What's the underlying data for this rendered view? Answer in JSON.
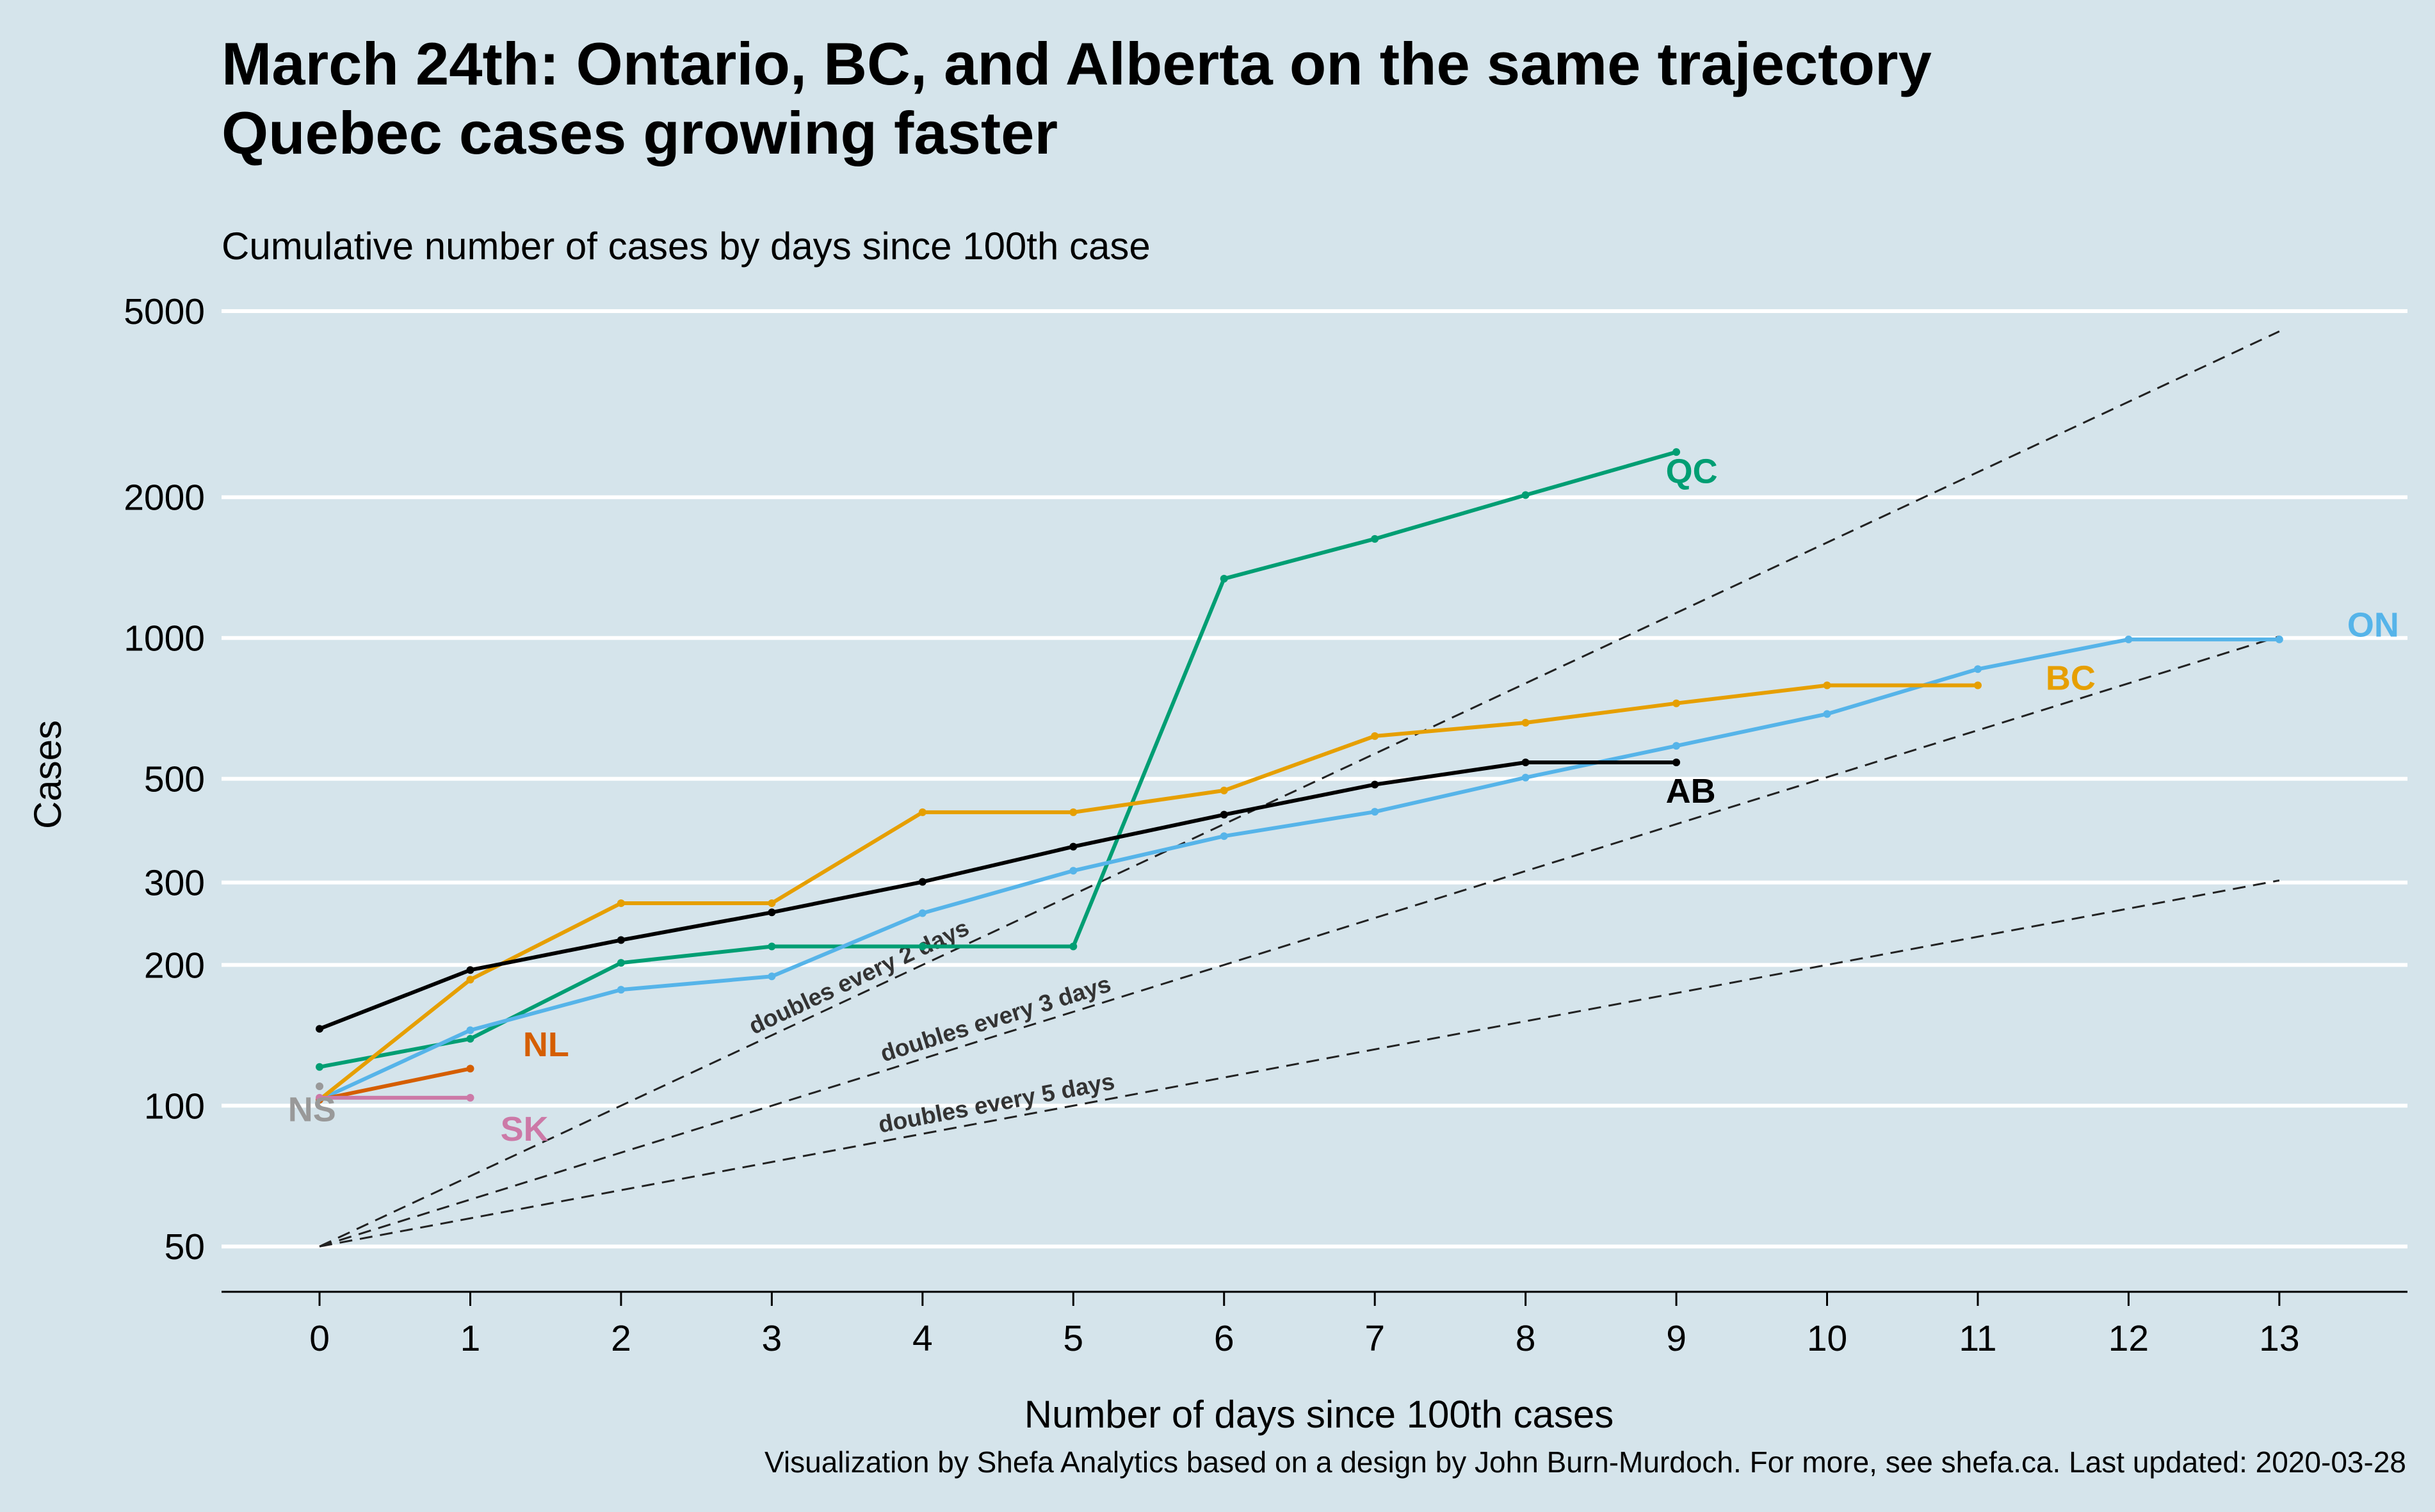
{
  "chart_data": {
    "type": "line",
    "title_lines": [
      "March 24th: Ontario, BC, and Alberta on the same trajectory",
      "Quebec cases growing faster"
    ],
    "subtitle": "Cumulative number of cases by days since 100th case",
    "xlabel": "Number of days since 100th cases",
    "ylabel": "Cases",
    "caption": "Visualization by Shefa Analytics based on a design by John Burn-Murdoch. For more, see shefa.ca. Last updated: 2020-03-28",
    "y_scale": "log",
    "xlim": [
      -0.65,
      13.85
    ],
    "ylim": [
      40,
      5000
    ],
    "x_ticks": [
      "0",
      "1",
      "2",
      "3",
      "4",
      "5",
      "6",
      "7",
      "8",
      "9",
      "10",
      "11",
      "12",
      "13"
    ],
    "y_ticks": [
      {
        "value": 50,
        "label": "50"
      },
      {
        "value": 100,
        "label": "100"
      },
      {
        "value": 200,
        "label": "200"
      },
      {
        "value": 300,
        "label": "300"
      },
      {
        "value": 500,
        "label": "500"
      },
      {
        "value": 1000,
        "label": "1000"
      },
      {
        "value": 2000,
        "label": "2000"
      },
      {
        "value": 5000,
        "label": "5000"
      }
    ],
    "reference_lines": [
      {
        "label": "doubles every 2 days",
        "doubling_days": 2,
        "start_value": 50,
        "x_end": 13
      },
      {
        "label": "doubles every 3 days",
        "doubling_days": 3,
        "start_value": 50,
        "x_end": 13
      },
      {
        "label": "doubles every 5 days",
        "doubling_days": 5,
        "start_value": 50,
        "x_end": 13
      }
    ],
    "series": [
      {
        "label": "QC",
        "color": "#009e73",
        "x": [
          0,
          1,
          2,
          3,
          4,
          5,
          6,
          7,
          8,
          9
        ],
        "y": [
          121,
          139,
          202,
          219,
          219,
          219,
          1339,
          1629,
          2021,
          2498
        ],
        "label_at": [
          8.93,
          2270
        ]
      },
      {
        "label": "ON",
        "color": "#56b4e9",
        "x": [
          0,
          1,
          2,
          3,
          4,
          5,
          6,
          7,
          8,
          9,
          10,
          11,
          12,
          13
        ],
        "y": [
          103,
          145,
          177,
          189,
          258,
          318,
          377,
          425,
          503,
          588,
          688,
          858,
          993,
          993
        ],
        "label_at": [
          13.45,
          1065
        ]
      },
      {
        "label": "BC",
        "color": "#e69f00",
        "x": [
          0,
          1,
          2,
          3,
          4,
          5,
          6,
          7,
          8,
          9,
          10,
          11
        ],
        "y": [
          103,
          186,
          271,
          271,
          424,
          424,
          472,
          617,
          659,
          725,
          792,
          792
        ],
        "label_at": [
          11.45,
          820
        ]
      },
      {
        "label": "AB",
        "color": "#000000",
        "x": [
          0,
          1,
          2,
          3,
          4,
          5,
          6,
          7,
          8,
          9
        ],
        "y": [
          146,
          195,
          226,
          259,
          301,
          358,
          419,
          486,
          542,
          542
        ],
        "label_at": [
          8.93,
          470
        ]
      },
      {
        "label": "NL",
        "color": "#d55e00",
        "x": [
          0,
          1
        ],
        "y": [
          103,
          120
        ],
        "label_at": [
          1.35,
          135
        ]
      },
      {
        "label": "SK",
        "color": "#cc79a7",
        "x": [
          0,
          1
        ],
        "y": [
          104,
          104
        ],
        "label_at": [
          1.2,
          89
        ]
      },
      {
        "label": "NS",
        "color": "#999999",
        "x": [
          0
        ],
        "y": [
          110
        ],
        "label_at": [
          -0.05,
          98
        ]
      }
    ]
  }
}
